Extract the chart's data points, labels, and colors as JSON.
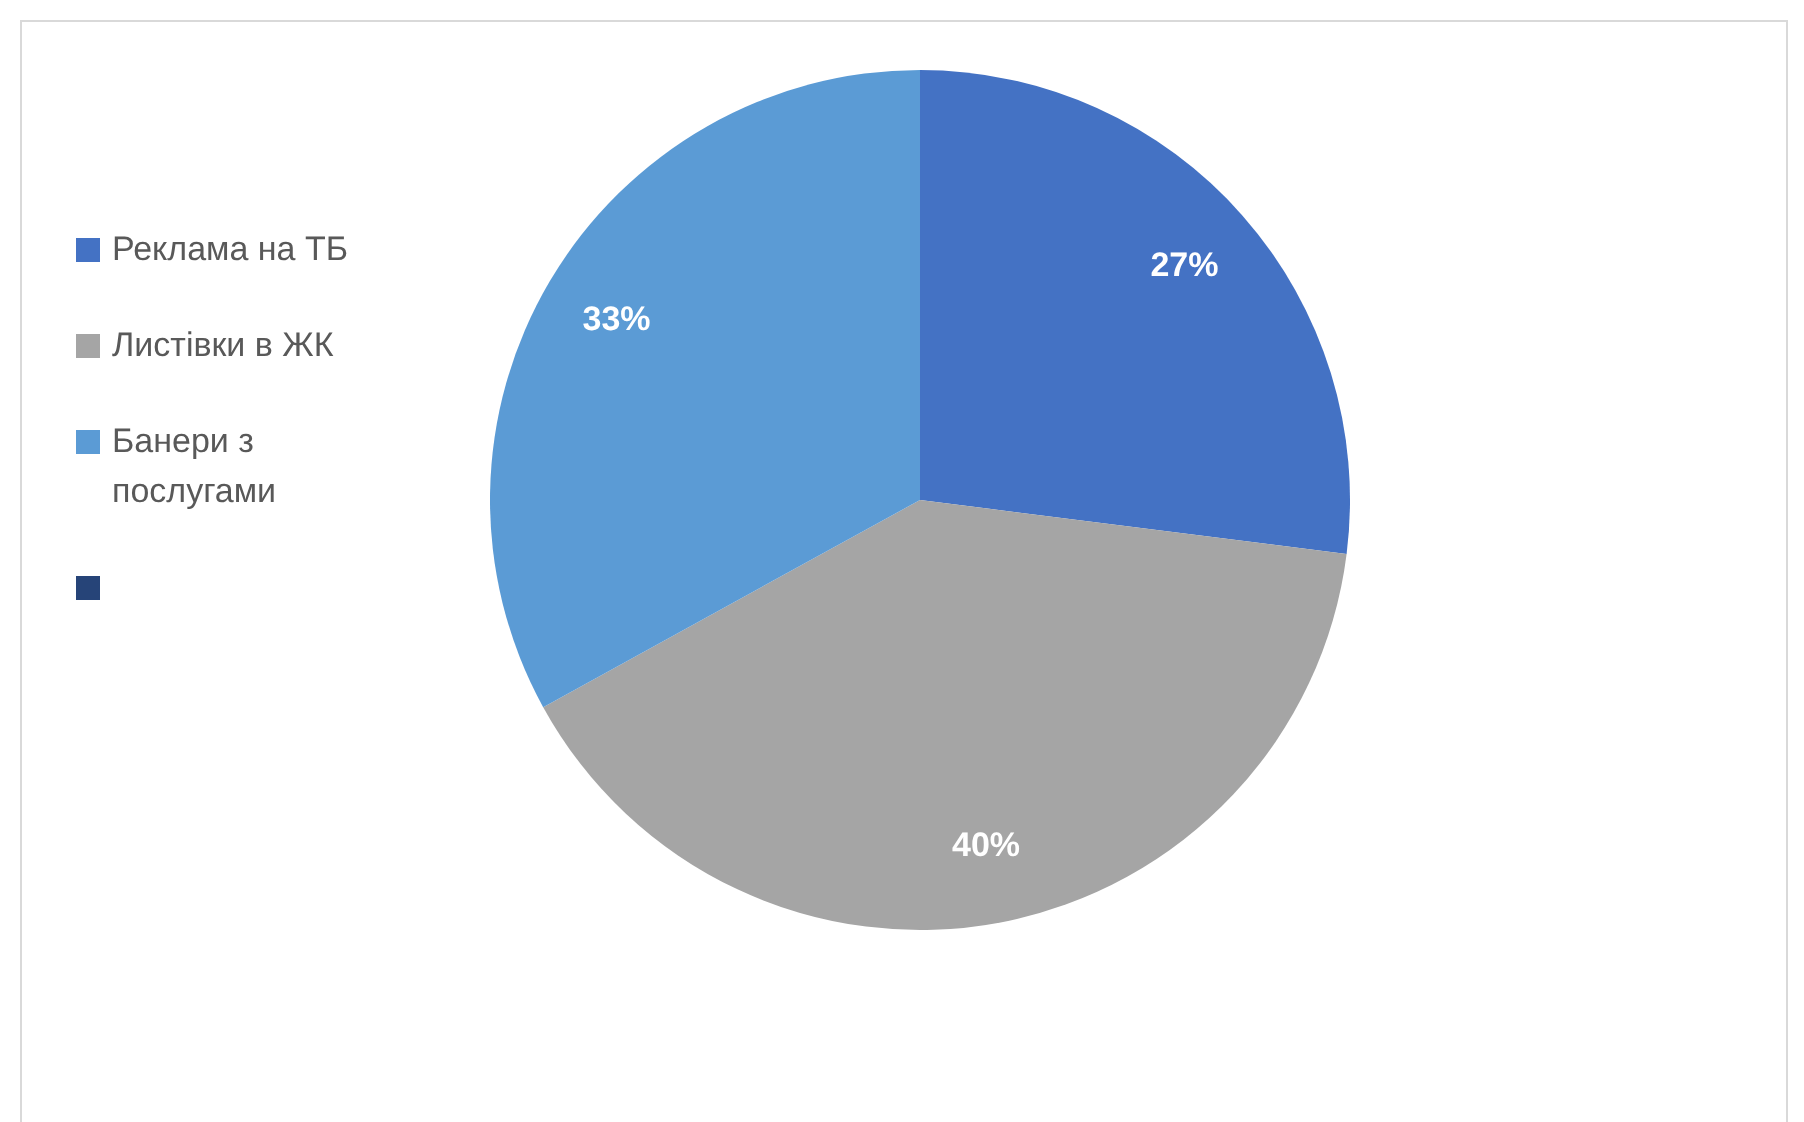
{
  "chart_data": {
    "type": "pie",
    "categories": [
      "Реклама на ТБ",
      "Листівки в ЖК",
      "Банери з послугами",
      null
    ],
    "values": [
      27,
      40,
      33,
      0
    ],
    "colors": [
      "#4472c4",
      "#a5a5a5",
      "#5b9bd5",
      "#264478"
    ],
    "value_labels": [
      "27%",
      "40%",
      "33%",
      null
    ],
    "legend": "left"
  }
}
